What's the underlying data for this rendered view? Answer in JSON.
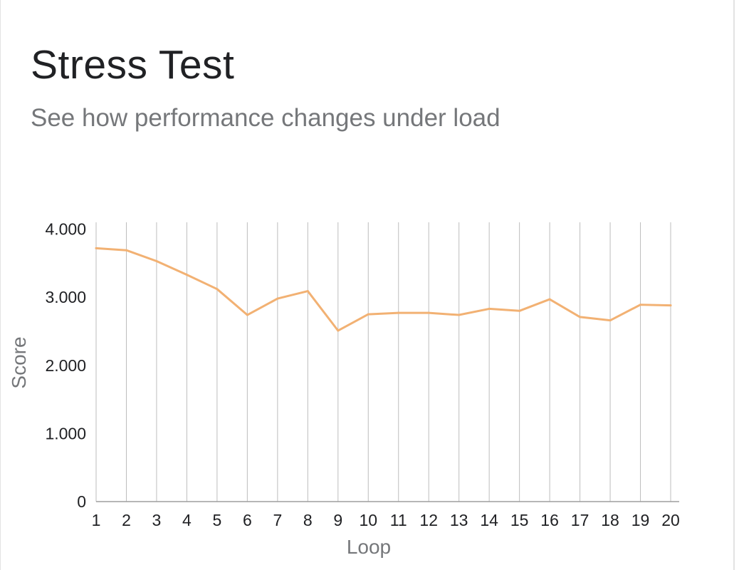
{
  "header": {
    "title": "Stress Test",
    "subtitle": "See how performance changes under load"
  },
  "chart_data": {
    "type": "line",
    "title": "Stress Test",
    "subtitle": "See how performance changes under load",
    "xlabel": "Loop",
    "ylabel": "Score",
    "x": [
      1,
      2,
      3,
      4,
      5,
      6,
      7,
      8,
      9,
      10,
      11,
      12,
      13,
      14,
      15,
      16,
      17,
      18,
      19,
      20
    ],
    "x_tick_labels": [
      "1",
      "2",
      "3",
      "4",
      "5",
      "6",
      "7",
      "8",
      "9",
      "10",
      "11",
      "12",
      "13",
      "14",
      "15",
      "16",
      "17",
      "18",
      "19",
      "20"
    ],
    "y_tick_labels": [
      "0",
      "1.000",
      "2.000",
      "3.000",
      "4.000"
    ],
    "y_ticks": [
      0,
      1000,
      2000,
      3000,
      4000
    ],
    "ylim": [
      0,
      4100
    ],
    "xlim": [
      1,
      20
    ],
    "grid": "vertical",
    "series": [
      {
        "values": [
          3720,
          3690,
          3530,
          3330,
          3120,
          2740,
          2980,
          3090,
          2510,
          2750,
          2770,
          2770,
          2740,
          2830,
          2800,
          2970,
          2710,
          2660,
          2890,
          2880
        ],
        "color": "#f2b173"
      }
    ],
    "colors": {
      "line": "#f2b173",
      "grid": "#bdbdbd",
      "axis": "#9e9e9e"
    }
  }
}
